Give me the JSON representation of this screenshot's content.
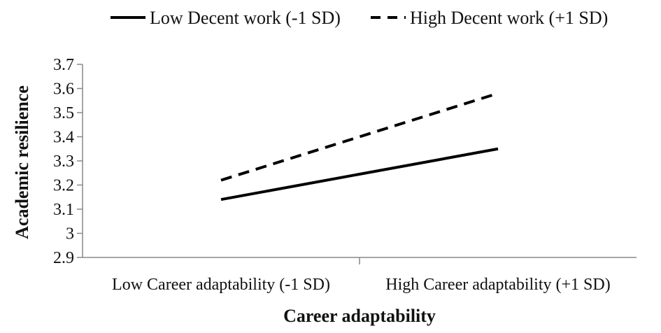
{
  "chart_data": {
    "type": "line",
    "title": "",
    "xlabel": "Career adaptability",
    "ylabel": "Academic resilience",
    "categories": [
      "Low Career adaptability (-1 SD)",
      "High Career adaptability (+1 SD)"
    ],
    "ylim": [
      2.9,
      3.7
    ],
    "yticks": [
      "2.9",
      "3",
      "3.1",
      "3.2",
      "3.3",
      "3.4",
      "3.5",
      "3.6",
      "3.7"
    ],
    "grid": false,
    "legend_position": "top",
    "series": [
      {
        "name": "Low Decent work (-1 SD)",
        "values": [
          3.14,
          3.35
        ],
        "style": "solid",
        "color": "#000000"
      },
      {
        "name": "High Decent work (+1 SD)",
        "values": [
          3.22,
          3.58
        ],
        "style": "dashed",
        "color": "#000000"
      }
    ]
  }
}
